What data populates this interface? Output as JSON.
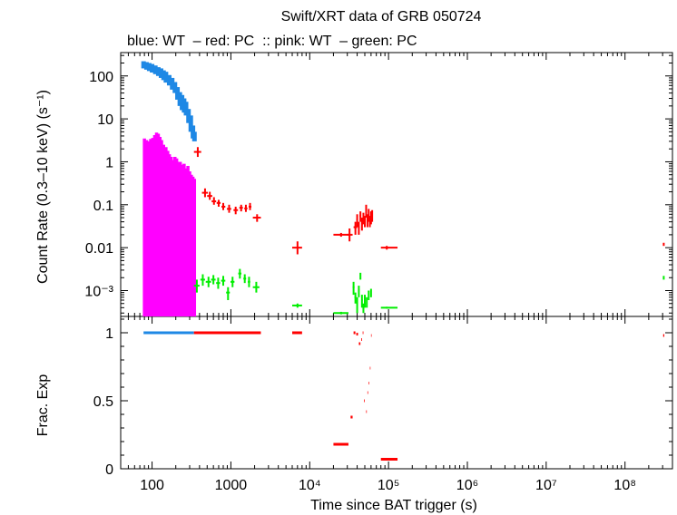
{
  "chart_data": [
    {
      "type": "scatter",
      "title": "Swift/XRT data of GRB 050724",
      "subtitle": "blue: WT  – red: PC  :: pink: WT  – green: PC",
      "ylabel": "Count Rate (0.3–10 keV) (s⁻¹)",
      "xscale": "log",
      "yscale": "log",
      "xlim": [
        40,
        400000000
      ],
      "ylim": [
        0.00025,
        350
      ],
      "colors": {
        "blue": "#1e88e5",
        "red": "#ff0000",
        "pink": "#ff00ff",
        "green": "#00ee00"
      },
      "y_ticks": [
        "100",
        "10",
        "1",
        "0.1",
        "0.01",
        "10⁻³"
      ],
      "series": [
        {
          "color_key": "blue",
          "style": "band",
          "points": [
            [
              78,
              200,
              150,
              220
            ],
            [
              85,
              180,
              140,
              210
            ],
            [
              92,
              170,
              130,
              200
            ],
            [
              100,
              160,
              120,
              190
            ],
            [
              110,
              140,
              110,
              175
            ],
            [
              120,
              130,
              100,
              160
            ],
            [
              130,
              120,
              90,
              150
            ],
            [
              140,
              105,
              80,
              135
            ],
            [
              150,
              95,
              70,
              125
            ],
            [
              165,
              80,
              60,
              105
            ],
            [
              180,
              65,
              48,
              90
            ],
            [
              195,
              55,
              40,
              72
            ],
            [
              210,
              40,
              28,
              55
            ],
            [
              225,
              30,
              20,
              42
            ],
            [
              240,
              25,
              16,
              36
            ],
            [
              255,
              20,
              14,
              30
            ],
            [
              270,
              17,
              12,
              25
            ],
            [
              290,
              12,
              8,
              17
            ],
            [
              310,
              8,
              5,
              12
            ],
            [
              330,
              5,
              3.5,
              7
            ],
            [
              345,
              4,
              3,
              5
            ]
          ]
        },
        {
          "color_key": "pink",
          "style": "bars",
          "points": [
            [
              80,
              3.5
            ],
            [
              85,
              3.2
            ],
            [
              90,
              3.0
            ],
            [
              96,
              3.4
            ],
            [
              102,
              3.6
            ],
            [
              108,
              4.2
            ],
            [
              114,
              4.8
            ],
            [
              120,
              4.5
            ],
            [
              126,
              3.8
            ],
            [
              132,
              3.2
            ],
            [
              140,
              2.5
            ],
            [
              150,
              2.2
            ],
            [
              158,
              1.8
            ],
            [
              166,
              1.5
            ],
            [
              175,
              1.3
            ],
            [
              185,
              1.1
            ],
            [
              195,
              1.3
            ],
            [
              205,
              1.2
            ],
            [
              215,
              1.0
            ],
            [
              228,
              1.0
            ],
            [
              240,
              0.85
            ],
            [
              255,
              0.9
            ],
            [
              270,
              0.7
            ],
            [
              285,
              0.8
            ],
            [
              300,
              0.6
            ],
            [
              315,
              0.5
            ],
            [
              330,
              0.45
            ],
            [
              345,
              0.4
            ]
          ],
          "floor": 0.00025
        },
        {
          "color_key": "red",
          "style": "cross",
          "points": [
            [
              380,
              1.7,
              340,
              420,
              1.3,
              2.2
            ],
            [
              470,
              0.19,
              430,
              510,
              0.15,
              0.24
            ],
            [
              540,
              0.16,
              500,
              580,
              0.13,
              0.2
            ],
            [
              610,
              0.12,
              570,
              650,
              0.1,
              0.15
            ],
            [
              700,
              0.11,
              660,
              740,
              0.09,
              0.13
            ],
            [
              800,
              0.09,
              760,
              850,
              0.075,
              0.11
            ],
            [
              950,
              0.08,
              890,
              1010,
              0.065,
              0.1
            ],
            [
              1150,
              0.075,
              1080,
              1230,
              0.06,
              0.09
            ],
            [
              1350,
              0.085,
              1280,
              1420,
              0.07,
              0.1
            ],
            [
              1550,
              0.082,
              1480,
              1620,
              0.068,
              0.1
            ],
            [
              1750,
              0.09,
              1680,
              1820,
              0.075,
              0.11
            ],
            [
              2150,
              0.05,
              1900,
              2400,
              0.04,
              0.06
            ],
            [
              7000,
              0.01,
              6000,
              8000,
              0.007,
              0.014
            ],
            [
              25000,
              0.02,
              20000,
              31000,
              0.018,
              0.022
            ],
            [
              32000,
              0.02,
              30000,
              35000,
              0.014,
              0.028
            ],
            [
              38000,
              0.03,
              36000,
              40000,
              0.02,
              0.04
            ],
            [
              40000,
              0.045,
              39000,
              41000,
              0.03,
              0.06
            ],
            [
              42000,
              0.03,
              41000,
              43000,
              0.02,
              0.04
            ],
            [
              44000,
              0.055,
              43000,
              45000,
              0.04,
              0.07
            ],
            [
              46000,
              0.035,
              45000,
              47000,
              0.025,
              0.05
            ],
            [
              48000,
              0.05,
              47000,
              49000,
              0.035,
              0.065
            ],
            [
              50000,
              0.04,
              49000,
              51000,
              0.03,
              0.055
            ],
            [
              52000,
              0.075,
              51000,
              53000,
              0.05,
              0.1
            ],
            [
              54000,
              0.045,
              53000,
              55000,
              0.03,
              0.06
            ],
            [
              56000,
              0.06,
              55000,
              57000,
              0.04,
              0.08
            ],
            [
              58000,
              0.04,
              57000,
              59000,
              0.03,
              0.055
            ],
            [
              60000,
              0.05,
              59000,
              61000,
              0.035,
              0.07
            ],
            [
              62000,
              0.055,
              61000,
              63000,
              0.04,
              0.075
            ],
            [
              95000,
              0.01,
              80000,
              130000,
              0.009,
              0.011
            ],
            [
              310000000,
              0.012,
              305000000,
              315000000,
              0.011,
              0.013
            ]
          ]
        },
        {
          "color_key": "green",
          "style": "cross",
          "points": [
            [
              370,
              0.0013,
              340,
              400,
              0.0009,
              0.0018
            ],
            [
              440,
              0.0018,
              410,
              470,
              0.0013,
              0.0024
            ],
            [
              520,
              0.0016,
              480,
              560,
              0.0012,
              0.0021
            ],
            [
              600,
              0.0018,
              560,
              640,
              0.0014,
              0.0023
            ],
            [
              690,
              0.0015,
              650,
              730,
              0.0011,
              0.002
            ],
            [
              800,
              0.0017,
              750,
              850,
              0.0013,
              0.0022
            ],
            [
              920,
              0.0009,
              870,
              970,
              0.0006,
              0.0012
            ],
            [
              1050,
              0.0016,
              990,
              1110,
              0.0012,
              0.0021
            ],
            [
              1300,
              0.0025,
              1240,
              1360,
              0.0019,
              0.0032
            ],
            [
              1500,
              0.0019,
              1440,
              1560,
              0.0015,
              0.0024
            ],
            [
              1700,
              0.0016,
              1640,
              1760,
              0.0012,
              0.0021
            ],
            [
              2100,
              0.0012,
              1900,
              2300,
              0.0009,
              0.0016
            ],
            [
              7000,
              0.00045,
              6000,
              8000,
              0.0004,
              0.0005
            ],
            [
              25000,
              0.0003,
              20000,
              31000,
              0.00028,
              0.00032
            ],
            [
              36000,
              0.0012,
              35000,
              37000,
              0.0008,
              0.0016
            ],
            [
              38000,
              0.0007,
              37000,
              39000,
              0.0005,
              0.0009
            ],
            [
              40000,
              0.0005,
              39000,
              41000,
              0.0003,
              0.0007
            ],
            [
              42000,
              0.001,
              41000,
              43000,
              0.0007,
              0.0013
            ],
            [
              44000,
              0.0022,
              43500,
              44500,
              0.0018,
              0.0026
            ],
            [
              46000,
              0.0006,
              45000,
              47000,
              0.0004,
              0.0008
            ],
            [
              48000,
              0.0004,
              47000,
              49000,
              0.0003,
              0.0005
            ],
            [
              50000,
              0.0006,
              49000,
              51000,
              0.0004,
              0.0008
            ],
            [
              53000,
              0.0005,
              52000,
              54000,
              0.0004,
              0.0007
            ],
            [
              56000,
              0.0008,
              55000,
              57000,
              0.0006,
              0.001
            ],
            [
              60000,
              0.0009,
              59000,
              61000,
              0.0007,
              0.0011
            ],
            [
              95000,
              0.0004,
              80000,
              130000,
              0.00038,
              0.00042
            ],
            [
              310000000,
              0.002,
              305000000,
              315000000,
              0.0018,
              0.0022
            ]
          ]
        }
      ]
    },
    {
      "type": "scatter",
      "xlabel": "Time since BAT trigger (s)",
      "ylabel": "Frac. Exp",
      "xscale": "log",
      "xlim": [
        40,
        400000000
      ],
      "ylim": [
        0,
        1.12
      ],
      "y_ticks": [
        "0",
        "0.5",
        "1"
      ],
      "x_ticks": [
        "100",
        "1000",
        "10⁴",
        "10⁵",
        "10⁶",
        "10⁷",
        "10⁸"
      ],
      "series": [
        {
          "color_key": "blue",
          "segments": [
            [
              78,
              340,
              1.0
            ]
          ]
        },
        {
          "color_key": "red",
          "segments": [
            [
              340,
              2400,
              1.0
            ],
            [
              6000,
              8000,
              1.0
            ],
            [
              20000,
              31000,
              0.18
            ],
            [
              33000,
              35000,
              0.38
            ],
            [
              36000,
              38000,
              1.0
            ],
            [
              39000,
              41000,
              0.99
            ],
            [
              42000,
              44000,
              0.92
            ],
            [
              45000,
              46000,
              0.95
            ],
            [
              47000,
              48000,
              1.0
            ],
            [
              49000,
              50000,
              0.5
            ],
            [
              52000,
              53000,
              0.42
            ],
            [
              54000,
              55000,
              0.56
            ],
            [
              56000,
              57000,
              0.63
            ],
            [
              58000,
              59000,
              0.74
            ],
            [
              60000,
              61000,
              0.98
            ],
            [
              80000,
              130000,
              0.07
            ],
            [
              305000000,
              315000000,
              0.98
            ]
          ]
        }
      ]
    }
  ]
}
